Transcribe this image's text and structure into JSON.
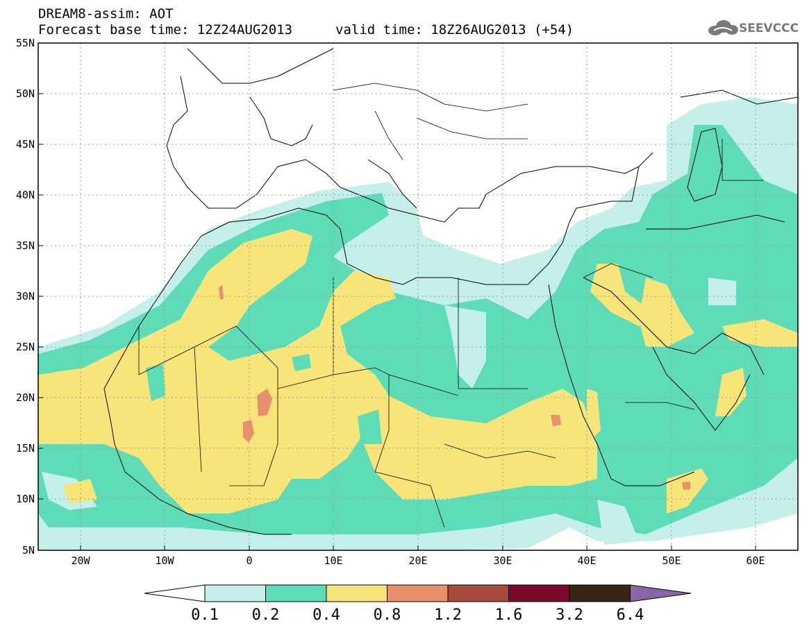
{
  "title": {
    "line1": "DREAM8-assim: AOT",
    "line2": "Forecast base time: 12Z24AUG2013",
    "valid": "valid time: 18Z26AUG2013 (+54)"
  },
  "logo": {
    "text": "SEEVCCC",
    "icon": "cloud-logo-icon"
  },
  "map": {
    "lon_range": [
      -25,
      65
    ],
    "lat_range": [
      5,
      55
    ],
    "lat_ticks": [
      "5N",
      "10N",
      "15N",
      "20N",
      "25N",
      "30N",
      "35N",
      "40N",
      "45N",
      "50N",
      "55N"
    ],
    "lon_ticks": [
      "20W",
      "10W",
      "0",
      "10E",
      "20E",
      "30E",
      "40E",
      "50E",
      "60E"
    ],
    "grid": "dotted"
  },
  "legend": {
    "levels": [
      "0.1",
      "0.2",
      "0.4",
      "0.8",
      "1.2",
      "1.6",
      "3.2",
      "6.4"
    ],
    "colors": [
      "#ffffff",
      "#c5f0ea",
      "#5ddcb7",
      "#f7e57a",
      "#e8906a",
      "#a84a3d",
      "#7a0b2c",
      "#3a2414",
      "#8a66a6"
    ]
  }
}
